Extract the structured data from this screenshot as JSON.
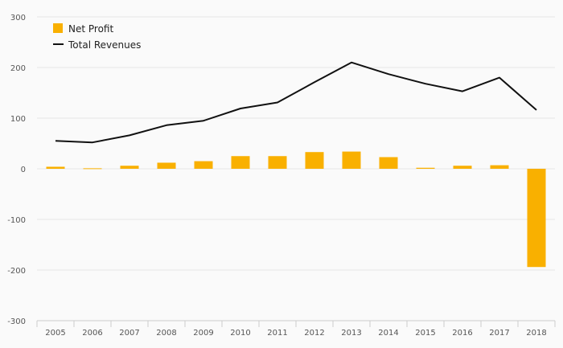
{
  "chart_data": {
    "type": "bar",
    "categories": [
      "2005",
      "2006",
      "2007",
      "2008",
      "2009",
      "2010",
      "2011",
      "2012",
      "2013",
      "2014",
      "2015",
      "2016",
      "2017",
      "2018"
    ],
    "series": [
      {
        "name": "Net Profit",
        "type": "bar",
        "color": "#f9b000",
        "values": [
          4,
          1,
          6,
          12,
          15,
          25,
          25,
          33,
          34,
          23,
          2,
          6,
          7,
          -194
        ]
      },
      {
        "name": "Total Revenues",
        "type": "line",
        "color": "#111111",
        "values": [
          55,
          52,
          66,
          86,
          95,
          119,
          131,
          171,
          210,
          187,
          168,
          153,
          180,
          116
        ]
      }
    ],
    "title": "",
    "xlabel": "",
    "ylabel": "",
    "ylim": [
      -300,
      300
    ],
    "yticks": [
      300,
      200,
      100,
      0,
      -100,
      -200,
      -300
    ],
    "ytick_labels": [
      "300",
      "200",
      "100",
      "0",
      "-100",
      "-200",
      "-300"
    ],
    "grid": true,
    "legend_position": "top-left"
  }
}
